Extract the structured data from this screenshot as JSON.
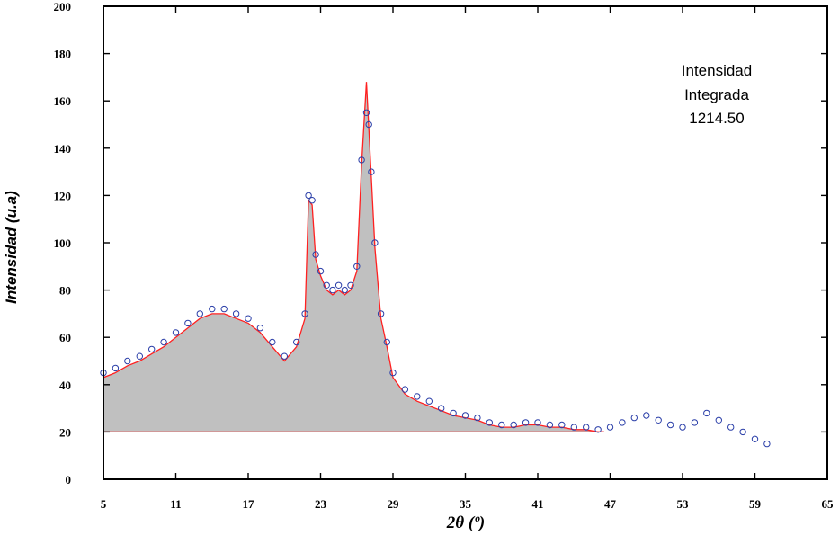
{
  "chart_data": {
    "type": "area",
    "title": "",
    "xlabel": "2θ (º)",
    "ylabel": "Intensidad (u.a)",
    "xlim": [
      5,
      65
    ],
    "ylim": [
      0,
      200
    ],
    "xticks": [
      5,
      11,
      17,
      23,
      29,
      35,
      41,
      47,
      53,
      59,
      65
    ],
    "yticks": [
      0,
      20,
      40,
      60,
      80,
      100,
      120,
      140,
      160,
      180,
      200
    ],
    "grid": false,
    "baseline": 20,
    "annotation": [
      "Intensidad",
      "Integrada",
      "1214.50"
    ],
    "colors": {
      "fill": "#c0c0c0",
      "fit_line": "#ff2020",
      "observed_markers": "#2a3ea8",
      "frame": "#000000"
    },
    "series": [
      {
        "role": "observed",
        "x": [
          5,
          6,
          7,
          8,
          9,
          10,
          11,
          12,
          13,
          14,
          15,
          16,
          17,
          18,
          19,
          20,
          21,
          21.7,
          22,
          22.3,
          22.6,
          23,
          23.5,
          24,
          24.5,
          25,
          25.5,
          26,
          26.4,
          26.8,
          27,
          27.2,
          27.5,
          28,
          28.5,
          29,
          30,
          31,
          32,
          33,
          34,
          35,
          36,
          37,
          38,
          39,
          40,
          41,
          42,
          43,
          44,
          45,
          46,
          47,
          48,
          49,
          50,
          51,
          52,
          53,
          54,
          55,
          56,
          57,
          58,
          59,
          60
        ],
        "y": [
          45,
          47,
          50,
          52,
          55,
          58,
          62,
          66,
          70,
          72,
          72,
          70,
          68,
          64,
          58,
          52,
          58,
          70,
          120,
          118,
          95,
          88,
          82,
          80,
          82,
          80,
          82,
          90,
          135,
          155,
          150,
          130,
          100,
          70,
          58,
          45,
          38,
          35,
          33,
          30,
          28,
          27,
          26,
          24,
          23,
          23,
          24,
          24,
          23,
          23,
          22,
          22,
          21,
          22,
          24,
          26,
          27,
          25,
          23,
          22,
          24,
          28,
          25,
          22,
          20,
          17,
          15
        ]
      },
      {
        "role": "fit",
        "x": [
          5,
          6,
          7,
          8,
          9,
          10,
          11,
          12,
          13,
          14,
          15,
          16,
          17,
          18,
          19,
          20,
          21,
          21.7,
          22,
          22.3,
          22.6,
          23,
          23.5,
          24,
          24.5,
          25,
          25.5,
          26,
          26.4,
          26.8,
          27,
          27.2,
          27.5,
          28,
          28.5,
          29,
          30,
          31,
          32,
          33,
          34,
          35,
          36,
          37,
          38,
          39,
          40,
          41,
          42,
          43,
          44,
          45,
          46,
          46.5
        ],
        "y": [
          43,
          45,
          48,
          50,
          53,
          56,
          60,
          64,
          68,
          70,
          70,
          68,
          66,
          62,
          56,
          50,
          56,
          68,
          118,
          116,
          93,
          86,
          80,
          78,
          80,
          78,
          80,
          88,
          133,
          168,
          148,
          128,
          98,
          68,
          56,
          43,
          36,
          33,
          31,
          29,
          27,
          26,
          25,
          23,
          22,
          22,
          23,
          23,
          22,
          22,
          21,
          21,
          20,
          20
        ]
      }
    ]
  }
}
